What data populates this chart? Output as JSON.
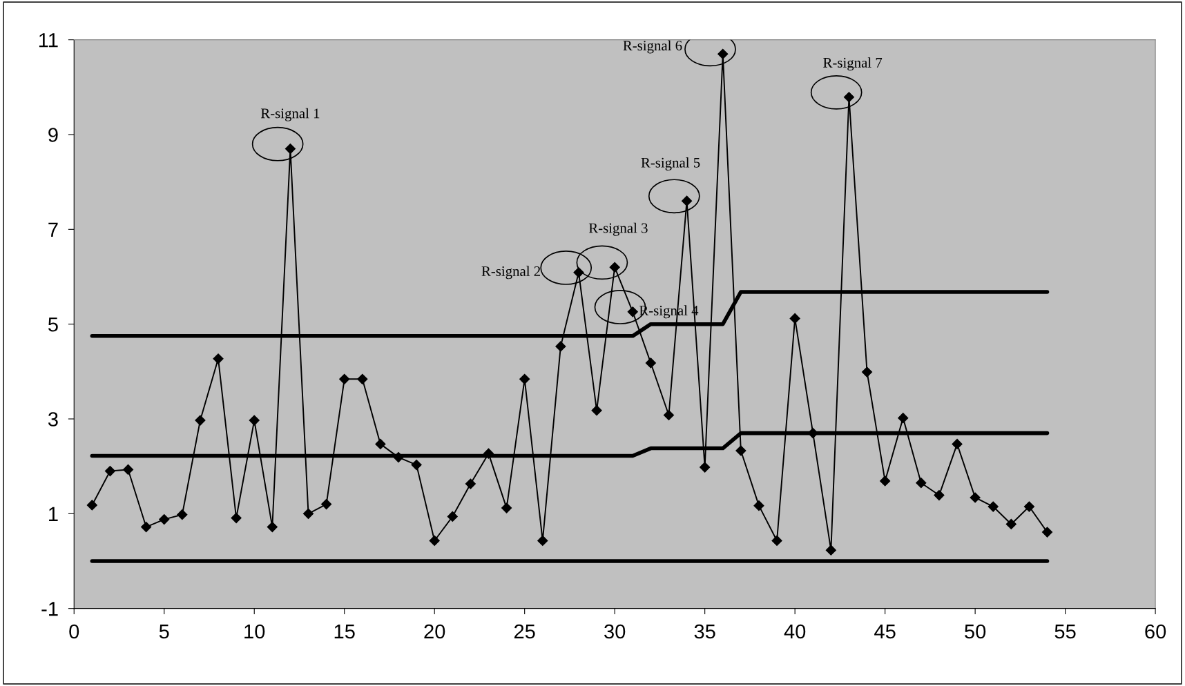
{
  "chart_data": {
    "type": "line",
    "x": [
      1,
      2,
      3,
      4,
      5,
      6,
      7,
      8,
      9,
      10,
      11,
      12,
      13,
      14,
      15,
      16,
      17,
      18,
      19,
      20,
      21,
      22,
      23,
      24,
      25,
      26,
      27,
      28,
      29,
      30,
      31,
      32,
      33,
      34,
      35,
      36,
      37,
      38,
      39,
      40,
      41,
      42,
      43,
      44,
      45,
      46,
      47,
      48,
      49,
      50,
      51,
      52,
      53,
      54
    ],
    "series": [
      {
        "color": "#000000",
        "marker": "diamond",
        "values": [
          1.18,
          1.9,
          1.93,
          0.72,
          0.88,
          0.98,
          2.97,
          4.27,
          0.91,
          2.97,
          0.72,
          8.7,
          1.0,
          1.2,
          3.84,
          3.84,
          2.47,
          2.19,
          2.03,
          0.43,
          0.94,
          1.63,
          2.27,
          1.12,
          3.84,
          0.43,
          4.53,
          6.09,
          3.18,
          6.2,
          5.26,
          4.18,
          3.08,
          7.6,
          1.98,
          10.7,
          2.33,
          1.17,
          0.43,
          5.12,
          2.7,
          0.23,
          9.79,
          3.99,
          1.69,
          3.02,
          1.65,
          1.39,
          2.47,
          1.34,
          1.15,
          0.78,
          1.15,
          0.61
        ]
      },
      {
        "color": "#000000",
        "marker": "none",
        "values": [
          4.75,
          4.75,
          4.75,
          4.75,
          4.75,
          4.75,
          4.75,
          4.75,
          4.75,
          4.75,
          4.75,
          4.75,
          4.75,
          4.75,
          4.75,
          4.75,
          4.75,
          4.75,
          4.75,
          4.75,
          4.75,
          4.75,
          4.75,
          4.75,
          4.75,
          4.75,
          4.75,
          4.75,
          4.75,
          4.75,
          4.75,
          5.0,
          5.0,
          5.0,
          5.0,
          5.0,
          5.68,
          5.68,
          5.68,
          5.68,
          5.68,
          5.68,
          5.68,
          5.68,
          5.68,
          5.68,
          5.68,
          5.68,
          5.68,
          5.68,
          5.68,
          5.68,
          5.68,
          5.68
        ]
      },
      {
        "color": "#000000",
        "marker": "none",
        "values": [
          2.22,
          2.22,
          2.22,
          2.22,
          2.22,
          2.22,
          2.22,
          2.22,
          2.22,
          2.22,
          2.22,
          2.22,
          2.22,
          2.22,
          2.22,
          2.22,
          2.22,
          2.22,
          2.22,
          2.22,
          2.22,
          2.22,
          2.22,
          2.22,
          2.22,
          2.22,
          2.22,
          2.22,
          2.22,
          2.22,
          2.22,
          2.38,
          2.38,
          2.38,
          2.38,
          2.38,
          2.7,
          2.7,
          2.7,
          2.7,
          2.7,
          2.7,
          2.7,
          2.7,
          2.7,
          2.7,
          2.7,
          2.7,
          2.7,
          2.7,
          2.7,
          2.7,
          2.7,
          2.7
        ]
      },
      {
        "color": "#000000",
        "marker": "none",
        "values": [
          0,
          0,
          0,
          0,
          0,
          0,
          0,
          0,
          0,
          0,
          0,
          0,
          0,
          0,
          0,
          0,
          0,
          0,
          0,
          0,
          0,
          0,
          0,
          0,
          0,
          0,
          0,
          0,
          0,
          0,
          0,
          0,
          0,
          0,
          0,
          0,
          0,
          0,
          0,
          0,
          0,
          0,
          0,
          0,
          0,
          0,
          0,
          0,
          0,
          0,
          0,
          0,
          0,
          0
        ]
      }
    ],
    "annotations": [
      {
        "text": "R-signal 1",
        "x": 12,
        "y": 8.7
      },
      {
        "text": "R-signal 2",
        "x": 28,
        "y": 6.09
      },
      {
        "text": "R-signal 3",
        "x": 30,
        "y": 6.2
      },
      {
        "text": "R-signal 4",
        "x": 31,
        "y": 5.26
      },
      {
        "text": "R-signal 5",
        "x": 34,
        "y": 7.6
      },
      {
        "text": "R-signal 6",
        "x": 36,
        "y": 10.7
      },
      {
        "text": "R-signal 7",
        "x": 43,
        "y": 9.79
      }
    ],
    "xlim": [
      0,
      60
    ],
    "xticks": [
      0,
      5,
      10,
      15,
      20,
      25,
      30,
      35,
      40,
      45,
      50,
      55,
      60
    ],
    "ylim": [
      -1,
      11
    ],
    "yticks": [
      -1,
      1,
      3,
      5,
      7,
      9,
      11
    ],
    "grid": false
  }
}
